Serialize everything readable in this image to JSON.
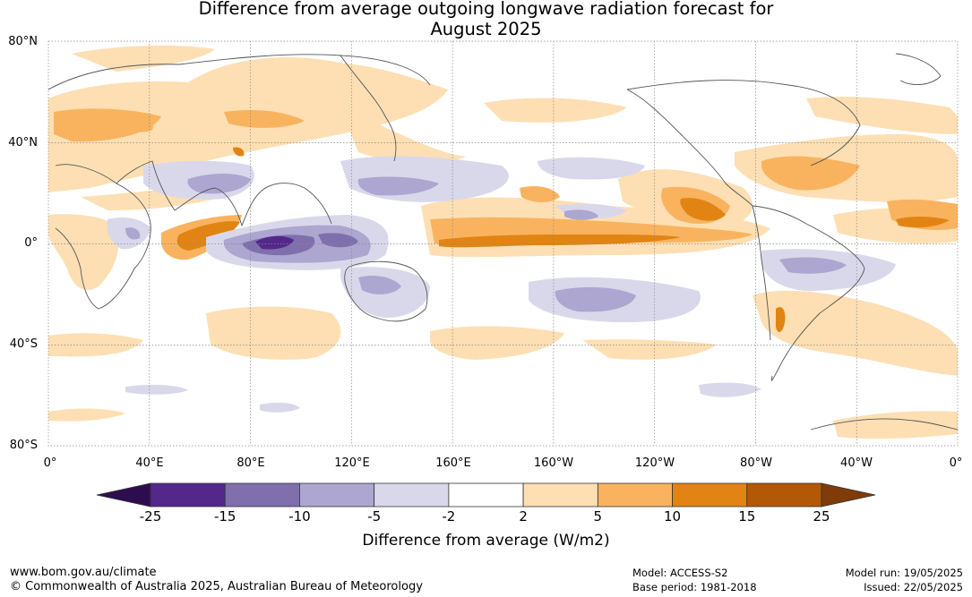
{
  "title_line1": "Difference from average outgoing longwave radiation forecast for",
  "title_line2": "August 2025",
  "lat_labels": [
    "80°N",
    "40°N",
    "0°",
    "40°S",
    "80°S"
  ],
  "lon_labels": [
    "0°",
    "40°E",
    "80°E",
    "120°E",
    "160°E",
    "160°W",
    "120°W",
    "80°W",
    "40°W",
    "0°"
  ],
  "colorbar": {
    "ticks": [
      "-25",
      "-15",
      "-10",
      "-5",
      "-2",
      "2",
      "5",
      "10",
      "15",
      "25"
    ],
    "colors": [
      "#2d0d4f",
      "#54288a",
      "#7f6fad",
      "#aca6d0",
      "#d9d8eb",
      "#ffffff",
      "#fddfb3",
      "#f9b35f",
      "#e28413",
      "#b35806",
      "#7f3b08"
    ],
    "label": "Difference from average (W/m2)"
  },
  "footer": {
    "website": "www.bom.gov.au/climate",
    "copyright": "© Commonwealth of Australia 2025, Australian Bureau of Meteorology",
    "model": "Model: ACCESS-S2",
    "base_period": "Base period: 1981-2018",
    "model_run": "Model run: 19/05/2025",
    "issued": "Issued: 22/05/2025"
  }
}
